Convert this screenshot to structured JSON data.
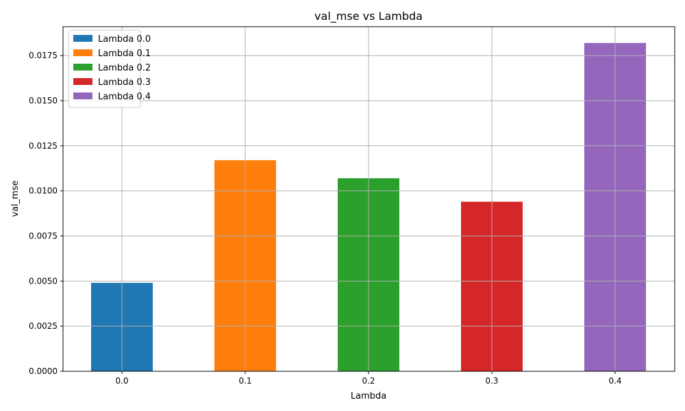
{
  "chart_data": {
    "type": "bar",
    "title": "val_mse vs Lambda",
    "xlabel": "Lambda",
    "ylabel": "val_mse",
    "categories": [
      "0.0",
      "0.1",
      "0.2",
      "0.3",
      "0.4"
    ],
    "values": [
      0.0049,
      0.0117,
      0.0107,
      0.0094,
      0.0182
    ],
    "colors": [
      "#1f77b4",
      "#ff7f0e",
      "#2ca02c",
      "#d62728",
      "#9467bd"
    ],
    "series": [
      {
        "name": "Lambda 0.0",
        "values": [
          0.0049,
          null,
          null,
          null,
          null
        ]
      },
      {
        "name": "Lambda 0.1",
        "values": [
          null,
          0.0117,
          null,
          null,
          null
        ]
      },
      {
        "name": "Lambda 0.2",
        "values": [
          null,
          null,
          0.0107,
          null,
          null
        ]
      },
      {
        "name": "Lambda 0.3",
        "values": [
          null,
          null,
          null,
          0.0094,
          null
        ]
      },
      {
        "name": "Lambda 0.4",
        "values": [
          null,
          null,
          null,
          null,
          0.0182
        ]
      }
    ],
    "ylim": [
      0,
      0.0191
    ],
    "yticks": [
      "0.0000",
      "0.0025",
      "0.0050",
      "0.0075",
      "0.0100",
      "0.0125",
      "0.0150",
      "0.0175"
    ],
    "grid": true,
    "legend_position": "top-left"
  }
}
